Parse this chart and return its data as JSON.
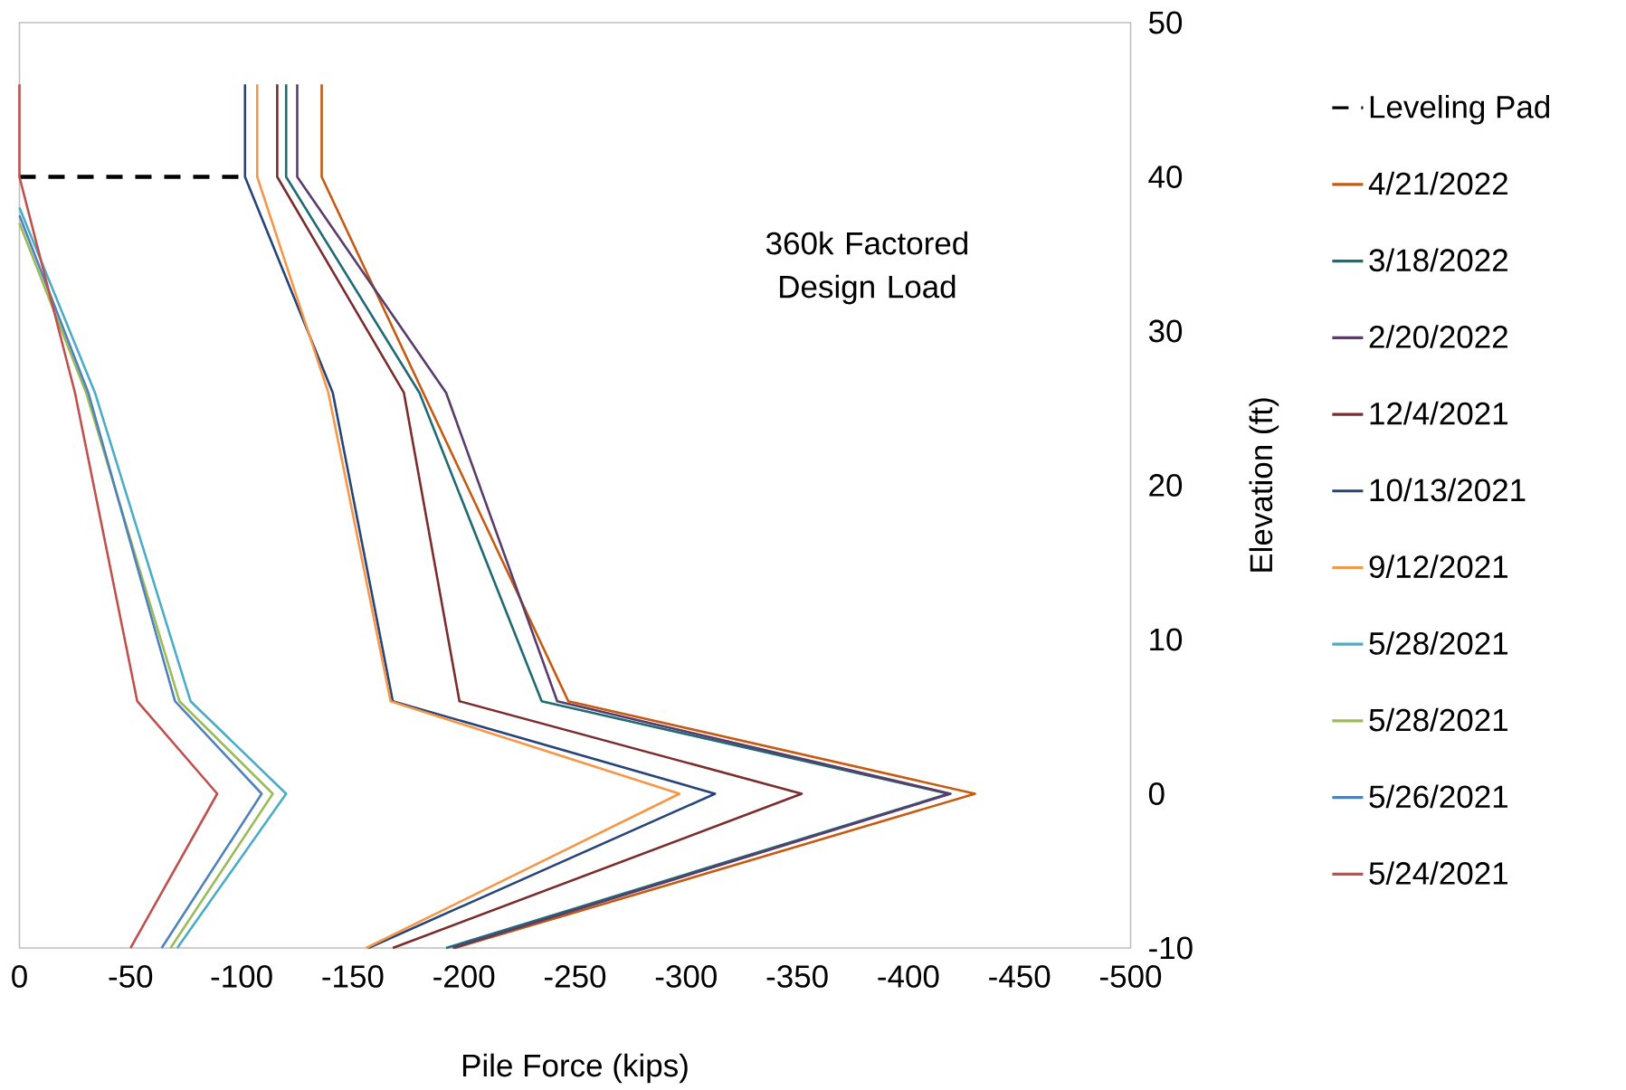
{
  "chart_data": {
    "type": "line",
    "xlabel": "Pile Force (kips)",
    "ylabel": "Elevation (ft)",
    "xlim": [
      0,
      -500
    ],
    "xticks": [
      0,
      -50,
      -100,
      -150,
      -200,
      -250,
      -300,
      -350,
      -400,
      -450,
      -500
    ],
    "ylim": [
      -10,
      50
    ],
    "yticks": [
      -10,
      0,
      10,
      20,
      30,
      40,
      50
    ],
    "legend": "right",
    "marker": "none",
    "line_style": "solid",
    "annotations": [
      "360k Factored Design Load"
    ],
    "series": [
      {
        "name": "Leveling Pad",
        "color": "#000000",
        "line_style": "dashed",
        "x": [
          0,
          -101.5
        ],
        "values": [
          40,
          40
        ]
      },
      {
        "name": "4/21/2022",
        "color": "#c55a11",
        "x": [
          -136,
          -136,
          -247,
          -430,
          -196
        ],
        "values": [
          46,
          40,
          6,
          0,
          -10
        ]
      },
      {
        "name": "3/18/2022",
        "color": "#1f6b75",
        "x": [
          -120,
          -120,
          -180,
          -235,
          -418,
          -192
        ],
        "values": [
          46,
          40,
          26,
          6,
          0,
          -10
        ]
      },
      {
        "name": "2/20/2022",
        "color": "#5a3c6b",
        "x": [
          -125,
          -125,
          -192,
          -242,
          -419,
          -195
        ],
        "values": [
          46,
          40,
          26,
          6,
          0,
          -10
        ]
      },
      {
        "name": "12/4/2021",
        "color": "#7b2c2c",
        "x": [
          -116,
          -116,
          -173,
          -198,
          -352,
          -168
        ],
        "values": [
          46,
          40,
          26,
          6,
          0,
          -10
        ]
      },
      {
        "name": "10/13/2021",
        "color": "#264478",
        "x": [
          -101.5,
          -101.5,
          -141,
          -168,
          -313,
          -157
        ],
        "values": [
          46,
          40,
          26,
          6,
          0,
          -10
        ]
      },
      {
        "name": "9/12/2021",
        "color": "#f79646",
        "x": [
          -107,
          -107,
          -139,
          -167,
          -297,
          -156
        ],
        "values": [
          46,
          40,
          26,
          6,
          0,
          -10
        ]
      },
      {
        "name": "5/28/2021",
        "color": "#4bacc6",
        "x": [
          0,
          -34,
          -77,
          -120,
          -71
        ],
        "values": [
          38,
          26,
          6,
          0,
          -10
        ]
      },
      {
        "name": "5/28/2021",
        "color": "#9bbb59",
        "x": [
          0,
          -30,
          -72,
          -114,
          -68
        ],
        "values": [
          37,
          26,
          6,
          0,
          -10
        ]
      },
      {
        "name": "5/26/2021",
        "color": "#4f81bd",
        "x": [
          0,
          -31,
          -70,
          -109,
          -64
        ],
        "values": [
          37.5,
          26,
          6,
          0,
          -10
        ]
      },
      {
        "name": "5/24/2021",
        "color": "#c0504d",
        "x": [
          0,
          0,
          -25,
          -53,
          -89,
          -50
        ],
        "values": [
          46,
          40,
          26,
          6,
          0,
          -10
        ]
      }
    ]
  }
}
